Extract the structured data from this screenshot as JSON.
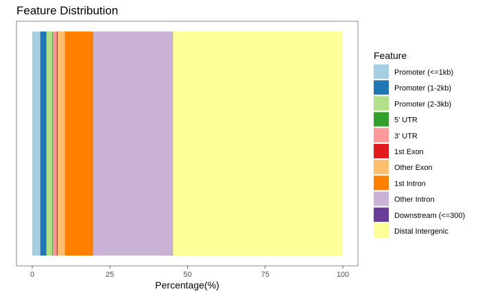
{
  "chart_data": {
    "type": "bar",
    "orientation": "horizontal-stacked",
    "title": "Feature Distribution",
    "xlabel": "Percentage(%)",
    "ylabel": "",
    "xlim": [
      0,
      100
    ],
    "x_ticks": [
      0,
      25,
      50,
      75,
      100
    ],
    "grid": false,
    "legend": {
      "title": "Feature",
      "position": "right"
    },
    "series": [
      {
        "name": "Promoter (<=1kb)",
        "value": 2.6,
        "color": "#A6CEE3"
      },
      {
        "name": "Promoter (1-2kb)",
        "value": 2.0,
        "color": "#1F78B4"
      },
      {
        "name": "Promoter (2-3kb)",
        "value": 1.8,
        "color": "#B2DF8A"
      },
      {
        "name": "5' UTR",
        "value": 0.2,
        "color": "#33A02C"
      },
      {
        "name": "3' UTR",
        "value": 1.3,
        "color": "#FB9A99"
      },
      {
        "name": "1st Exon",
        "value": 0.3,
        "color": "#E31A1C"
      },
      {
        "name": "Other Exon",
        "value": 2.3,
        "color": "#FDBF6F"
      },
      {
        "name": "1st Intron",
        "value": 9.2,
        "color": "#FF7F00"
      },
      {
        "name": "Other Intron",
        "value": 25.5,
        "color": "#CAB2D6"
      },
      {
        "name": "Downstream (<=300)",
        "value": 0.1,
        "color": "#6A3D9A"
      },
      {
        "name": "Distal Intergenic",
        "value": 54.7,
        "color": "#FFFF99"
      }
    ]
  }
}
